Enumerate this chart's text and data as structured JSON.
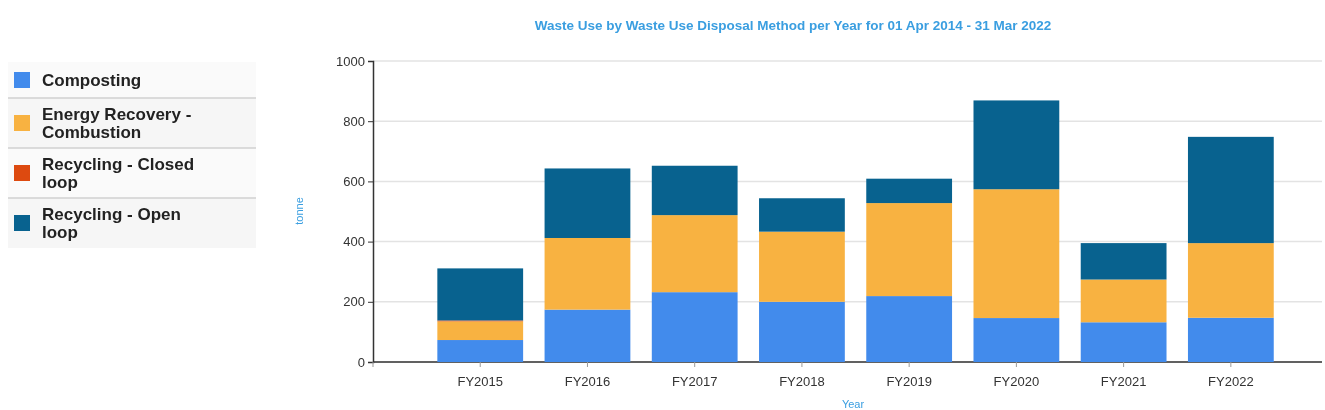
{
  "chart_data": {
    "type": "bar",
    "stacked": true,
    "title": "Waste Use by Waste Use Disposal Method per Year for 01 Apr 2014 - 31 Mar 2022",
    "xlabel": "Year",
    "ylabel": "tonne",
    "categories": [
      "FY2015",
      "FY2016",
      "FY2017",
      "FY2018",
      "FY2019",
      "FY2020",
      "FY2021",
      "FY2022"
    ],
    "series": [
      {
        "name": "Composting",
        "color": "#428bec",
        "values": [
          73,
          174,
          232,
          200,
          219,
          146,
          132,
          147
        ]
      },
      {
        "name": "Energy Recovery - Combustion",
        "color": "#f8b241",
        "values": [
          62,
          238,
          256,
          233,
          309,
          428,
          142,
          248
        ]
      },
      {
        "name": "Recycling - Closed loop",
        "color": "#dd4a10",
        "values": [
          3,
          0,
          0,
          0,
          0,
          0,
          0,
          0
        ]
      },
      {
        "name": "Recycling - Open loop",
        "color": "#08628f",
        "values": [
          173,
          231,
          164,
          111,
          81,
          295,
          121,
          353
        ]
      }
    ],
    "ylim": [
      0,
      1000
    ],
    "yticks": [
      0,
      200,
      400,
      600,
      800,
      1000
    ],
    "grid": "y",
    "legend": "left"
  }
}
